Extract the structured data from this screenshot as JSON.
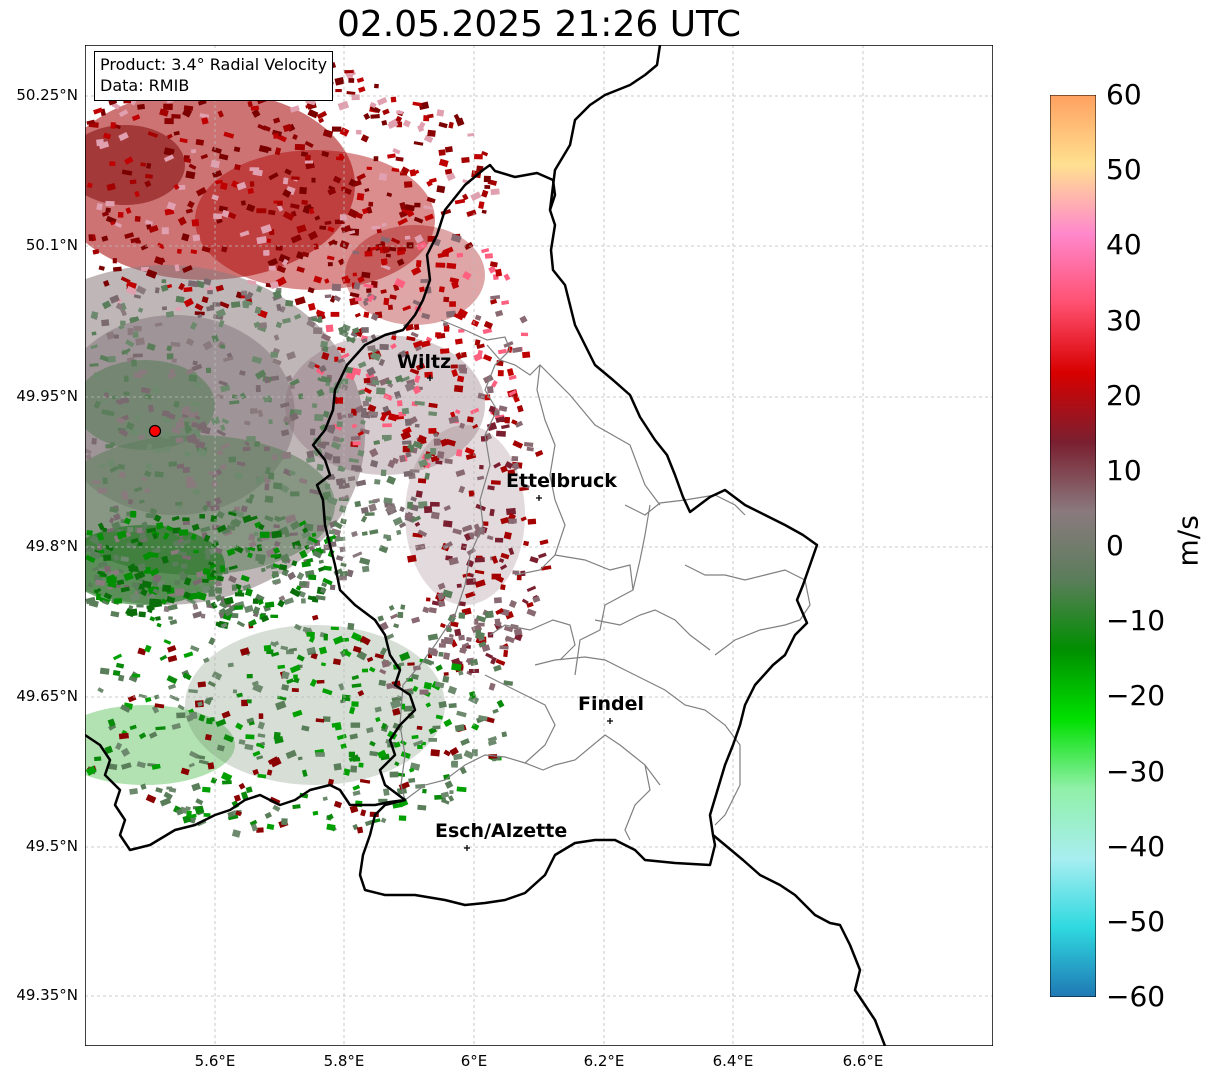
{
  "title": "02.05.2025 21:26 UTC",
  "info": {
    "product": "Product: 3.4° Radial Velocity",
    "source": "Data: RMIB"
  },
  "lat_labels": [
    "50.25°N",
    "50.1°N",
    "49.95°N",
    "49.8°N",
    "49.65°N",
    "49.5°N",
    "49.35°N"
  ],
  "lon_labels": [
    "5.6°E",
    "5.8°E",
    "6°E",
    "6.2°E",
    "6.4°E",
    "6.6°E"
  ],
  "cities": [
    {
      "name": "Wiltz"
    },
    {
      "name": "Ettelbruck"
    },
    {
      "name": "Findel"
    },
    {
      "name": "Esch/Alzette"
    }
  ],
  "colorbar": {
    "unit": "m/s",
    "min": -60,
    "max": 60,
    "ticks": [
      "60",
      "50",
      "40",
      "30",
      "20",
      "10",
      "0",
      "−10",
      "−20",
      "−30",
      "−40",
      "−50",
      "−60"
    ],
    "stops": [
      "#1f78b4",
      "#2fd9e0",
      "#a8eef0",
      "#90f0a8",
      "#00e000",
      "#008f00",
      "#5a7d5a",
      "#8a7a7e",
      "#7a1f30",
      "#d80000",
      "#ff5070",
      "#ff88cc",
      "#ffe090",
      "#ffa060"
    ]
  },
  "radar": {
    "color": "#ff0000"
  }
}
